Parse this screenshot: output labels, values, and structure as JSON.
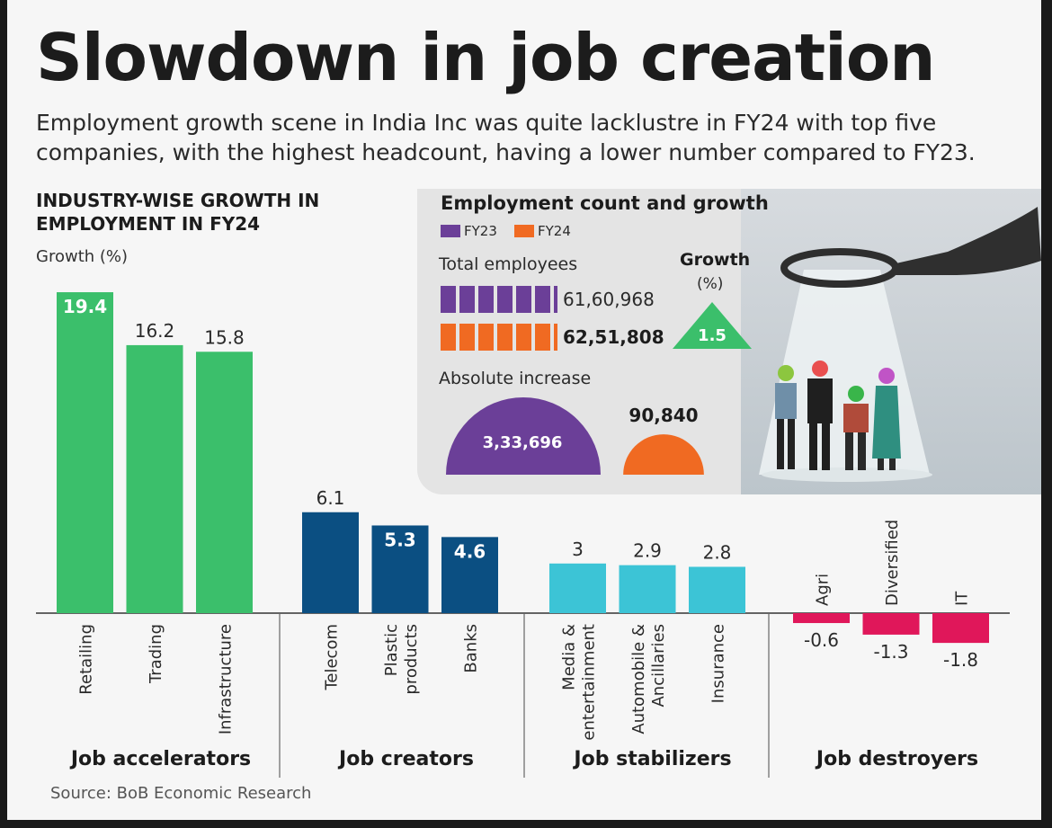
{
  "headline": "Slowdown in job creation",
  "subtitle": "Employment growth scene in India Inc was quite lacklustre in FY24 with top five companies, with the highest headcount, having a lower number compared to FY23.",
  "industry_title": "INDUSTRY-WISE GROWTH IN EMPLOYMENT IN FY24",
  "growth_axis_label": "Growth (%)",
  "source": "Source: BoB Economic Research",
  "colors": {
    "accelerators": "#3bbf6b",
    "creators": "#0b4f82",
    "stabilizers": "#3cc4d6",
    "destroyers": "#e0175a",
    "fy23": "#6b3f98",
    "fy24": "#f06a22",
    "growth_triangle": "#3bbf6b"
  },
  "chart_data": [
    {
      "type": "bar",
      "title": "INDUSTRY-WISE GROWTH IN EMPLOYMENT IN FY24",
      "ylabel": "Growth (%)",
      "ylim": [
        -2,
        20
      ],
      "grid": false,
      "groups": [
        {
          "name": "Job accelerators",
          "color": "#3bbf6b",
          "categories": [
            "Retailing",
            "Trading",
            "Infrastructure"
          ],
          "values": [
            19.4,
            16.2,
            15.8
          ]
        },
        {
          "name": "Job creators",
          "color": "#0b4f82",
          "categories": [
            "Telecom",
            "Plastic products",
            "Banks"
          ],
          "values": [
            6.1,
            5.3,
            4.6
          ]
        },
        {
          "name": "Job stabilizers",
          "color": "#3cc4d6",
          "categories": [
            "Media & entertainment",
            "Automobile & Ancillaries",
            "Insurance"
          ],
          "values": [
            3,
            2.9,
            2.8
          ]
        },
        {
          "name": "Job destroyers",
          "color": "#e0175a",
          "categories": [
            "Agri",
            "Diversified",
            "IT"
          ],
          "values": [
            -0.6,
            -1.3,
            -1.8
          ]
        }
      ]
    },
    {
      "type": "bar",
      "title": "Employment count and growth",
      "legend": [
        "FY23",
        "FY24"
      ],
      "legend_position": "top-left",
      "total_employees_label": "Total employees",
      "series": [
        {
          "name": "FY23",
          "value": 6160968,
          "label": "61,60,968"
        },
        {
          "name": "FY24",
          "value": 6251808,
          "label": "62,51,808"
        }
      ],
      "growth_label": "Growth",
      "growth_unit": "(%)",
      "growth_value": 1.5,
      "absolute_increase_label": "Absolute increase",
      "absolute_increase": [
        {
          "name": "FY23",
          "value": 333696,
          "label": "3,33,696"
        },
        {
          "name": "FY24",
          "value": 90840,
          "label": "90,840"
        }
      ]
    }
  ]
}
